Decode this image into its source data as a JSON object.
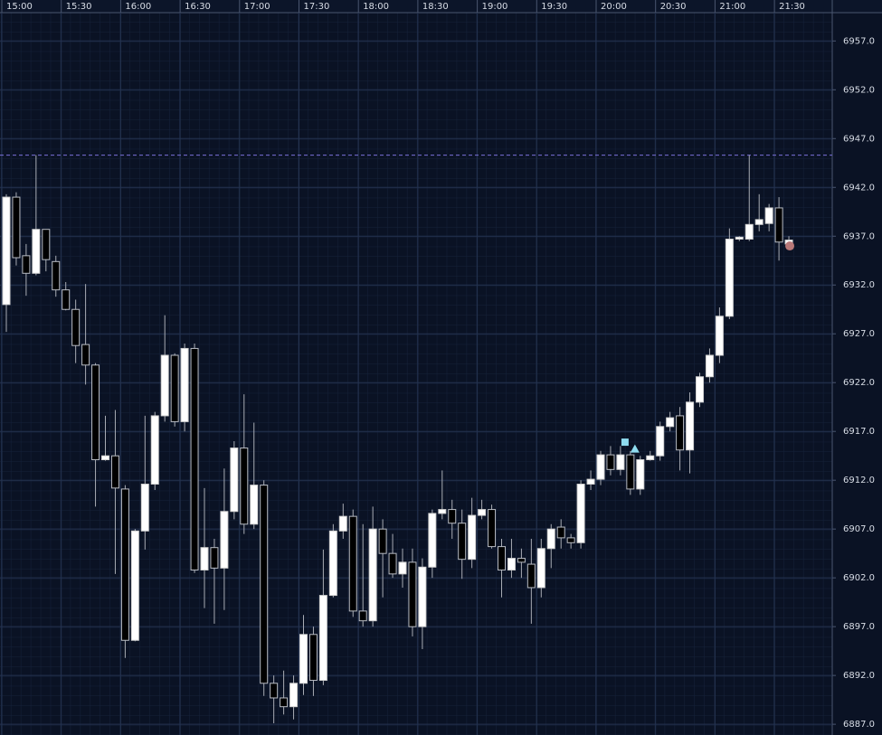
{
  "chart_data": {
    "type": "candlestick",
    "categories": [
      "15:00",
      null,
      null,
      null,
      null,
      null,
      "15:30",
      null,
      null,
      null,
      null,
      null,
      "16:00",
      null,
      null,
      null,
      null,
      null,
      "16:30",
      null,
      null,
      null,
      null,
      null,
      "17:00",
      null,
      null,
      null,
      null,
      null,
      "17:30",
      null,
      null,
      null,
      null,
      null,
      "18:00",
      null,
      null,
      null,
      null,
      null,
      "18:30",
      null,
      null,
      null,
      null,
      null,
      "19:00",
      null,
      null,
      null,
      null,
      null,
      "19:30",
      null,
      null,
      null,
      null,
      null,
      "20:00",
      null,
      null,
      null,
      null,
      null,
      "20:30",
      null,
      null,
      null,
      null,
      null,
      "21:00",
      null,
      null,
      null,
      null,
      null,
      "21:30",
      null
    ],
    "open": [
      6930.0,
      6941.0,
      6935.0,
      6933.2,
      6937.7,
      6934.4,
      6931.5,
      6929.5,
      6925.9,
      6923.8,
      6914.1,
      6914.5,
      6911.1,
      6895.6,
      6906.8,
      6911.6,
      6918.6,
      6924.8,
      6918.0,
      6925.5,
      6902.8,
      6905.1,
      6903.0,
      6908.8,
      6915.3,
      6907.5,
      6911.5,
      6891.2,
      6889.7,
      6888.8,
      6891.2,
      6896.2,
      6891.5,
      6900.2,
      6906.8,
      6908.3,
      6898.6,
      6897.6,
      6907.0,
      6904.5,
      6902.4,
      6903.6,
      6897.0,
      6903.1,
      6908.6,
      6909.0,
      6907.6,
      6903.9,
      6908.4,
      6909.0,
      6905.2,
      6902.8,
      6904.0,
      6903.4,
      6901.0,
      6905.0,
      6907.2,
      6906.1,
      6905.6,
      6911.6,
      6912.1,
      6914.6,
      6913.1,
      6914.6,
      6911.1,
      6914.1,
      6914.5,
      6917.5,
      6918.6,
      6915.1,
      6920.0,
      6922.6,
      6924.8,
      6928.8,
      6936.7,
      6936.7,
      6938.2,
      6938.3,
      6939.9,
      6936.2
    ],
    "high": [
      6941.3,
      6941.5,
      6936.2,
      6945.3,
      6937.7,
      6935.0,
      6932.3,
      6930.5,
      6932.1,
      6924.0,
      6918.6,
      6919.2,
      6911.5,
      6907.0,
      6918.6,
      6919.0,
      6928.9,
      6925.0,
      6926.0,
      6926.0,
      6911.2,
      6906.0,
      6913.2,
      6916.0,
      6920.8,
      6917.9,
      6912.0,
      6892.0,
      6892.5,
      6892.0,
      6898.2,
      6897.0,
      6904.9,
      6907.5,
      6909.6,
      6909.0,
      6907.5,
      6909.3,
      6908.0,
      6906.5,
      6905.0,
      6905.0,
      6904.0,
      6909.0,
      6913.0,
      6910.0,
      6909.0,
      6910.2,
      6910.0,
      6909.5,
      6906.0,
      6906.0,
      6905.0,
      6906.0,
      6906.0,
      6907.5,
      6908.0,
      6906.5,
      6912.0,
      6913.0,
      6915.0,
      6915.5,
      6915.5,
      6915.0,
      6914.5,
      6915.0,
      6918.0,
      6919.0,
      6919.5,
      6921.0,
      6923.0,
      6925.5,
      6929.7,
      6937.8,
      6937.0,
      6945.3,
      6941.3,
      6940.3,
      6941.0,
      6937.0
    ],
    "low": [
      6927.2,
      6934.0,
      6930.9,
      6933.0,
      6933.4,
      6930.8,
      6929.4,
      6924.0,
      6921.8,
      6909.3,
      6914.0,
      6902.4,
      6893.8,
      6895.5,
      6904.9,
      6911.0,
      6918.0,
      6917.5,
      6917.0,
      6902.5,
      6898.9,
      6897.3,
      6898.7,
      6908.0,
      6906.5,
      6907.0,
      6889.9,
      6887.1,
      6888.0,
      6887.5,
      6890.0,
      6889.9,
      6891.0,
      6900.0,
      6906.0,
      6898.0,
      6897.0,
      6897.0,
      6900.0,
      6902.0,
      6901.0,
      6896.0,
      6894.7,
      6902.0,
      6908.0,
      6906.0,
      6901.9,
      6903.0,
      6908.0,
      6905.0,
      6900.0,
      6902.0,
      6902.0,
      6897.3,
      6900.0,
      6903.0,
      6905.0,
      6905.0,
      6905.0,
      6911.0,
      6911.5,
      6912.5,
      6912.5,
      6910.5,
      6910.5,
      6914.0,
      6914.0,
      6917.0,
      6913.0,
      6912.7,
      6919.5,
      6922.0,
      6924.0,
      6928.5,
      6936.5,
      6936.5,
      6937.5,
      6937.5,
      6934.5,
      6936.0
    ],
    "close": [
      6941.0,
      6934.8,
      6933.2,
      6937.7,
      6934.6,
      6931.5,
      6929.5,
      6925.8,
      6923.8,
      6914.1,
      6914.5,
      6911.2,
      6895.6,
      6906.8,
      6911.6,
      6918.6,
      6924.8,
      6918.0,
      6925.5,
      6902.8,
      6905.1,
      6903.0,
      6908.8,
      6915.3,
      6907.5,
      6911.5,
      6891.2,
      6889.7,
      6888.8,
      6891.2,
      6896.2,
      6891.5,
      6900.2,
      6906.8,
      6908.3,
      6898.6,
      6897.6,
      6907.0,
      6904.5,
      6902.4,
      6903.6,
      6897.0,
      6903.1,
      6908.6,
      6909.0,
      6907.6,
      6903.9,
      6908.4,
      6909.0,
      6905.2,
      6902.8,
      6904.0,
      6903.6,
      6901.0,
      6905.0,
      6907.0,
      6906.1,
      6905.6,
      6911.6,
      6912.1,
      6914.6,
      6913.1,
      6914.6,
      6911.1,
      6914.1,
      6914.5,
      6917.5,
      6918.4,
      6915.1,
      6920.0,
      6922.6,
      6924.8,
      6928.8,
      6936.7,
      6936.9,
      6938.2,
      6938.7,
      6939.9,
      6936.4,
      6936.6
    ],
    "up_color": "#ffffff",
    "down_color": "#000000",
    "ylim": [
      6885.9,
      6959.9
    ],
    "yticks": [
      {
        "value": 6887,
        "label": "6887.0"
      },
      {
        "value": 6892,
        "label": "6892.0"
      },
      {
        "value": 6897,
        "label": "6897.0"
      },
      {
        "value": 6902,
        "label": "6902.0"
      },
      {
        "value": 6907,
        "label": "6907.0"
      },
      {
        "value": 6912,
        "label": "6912.0"
      },
      {
        "value": 6917,
        "label": "6917.0"
      },
      {
        "value": 6922,
        "label": "6922.0"
      },
      {
        "value": 6927,
        "label": "6927.0"
      },
      {
        "value": 6932,
        "label": "6932.0"
      },
      {
        "value": 6937,
        "label": "6937.0"
      },
      {
        "value": 6942,
        "label": "6942.0"
      },
      {
        "value": 6947,
        "label": "6947.0"
      },
      {
        "value": 6952,
        "label": "6952.0"
      },
      {
        "value": 6957,
        "label": "6957.0"
      }
    ],
    "grid": true,
    "reference_line": {
      "value": 6945.3,
      "color": "#7a70d8"
    },
    "markers": [
      {
        "shape": "square",
        "index": 62,
        "value": 6915.9,
        "color": "#8fdcf0"
      },
      {
        "shape": "triangle",
        "index": 63,
        "value": 6915.2,
        "color": "#8fdcf0"
      },
      {
        "shape": "circle",
        "index": 79,
        "value": 6936.0,
        "color": "#b87878"
      }
    ]
  }
}
